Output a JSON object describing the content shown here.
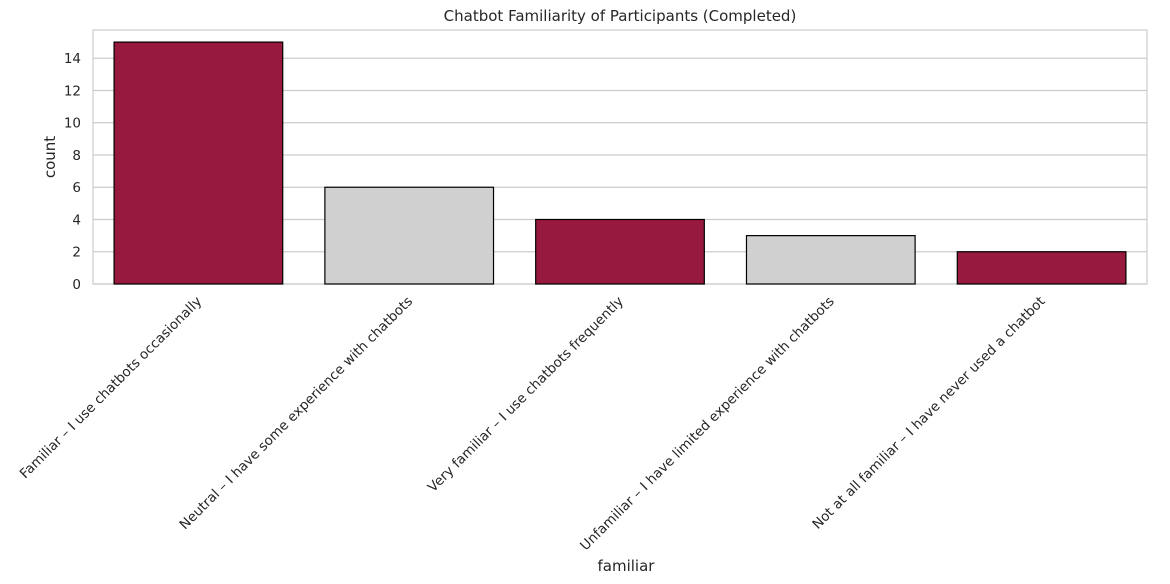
{
  "chart_data": {
    "type": "bar",
    "title": "Chatbot Familiarity of Participants (Completed)",
    "xlabel": "familiar",
    "ylabel": "count",
    "categories": [
      "Familiar – I use chatbots occasionally",
      "Neutral – I have some experience with chatbots",
      "Very familiar – I use chatbots frequently",
      "Unfamiliar – I have limited experience with chatbots",
      "Not at all familiar – I have never used a chatbot"
    ],
    "values": [
      15,
      6,
      4,
      3,
      2
    ],
    "bar_colors": [
      "#97193e",
      "#d0d0d0",
      "#97193e",
      "#d0d0d0",
      "#97193e"
    ],
    "edge_color": "#000000",
    "ylim": [
      0,
      15.75
    ],
    "yticks": [
      0,
      2,
      4,
      6,
      8,
      10,
      12,
      14
    ],
    "grid": "horizontal",
    "legend": "none"
  }
}
